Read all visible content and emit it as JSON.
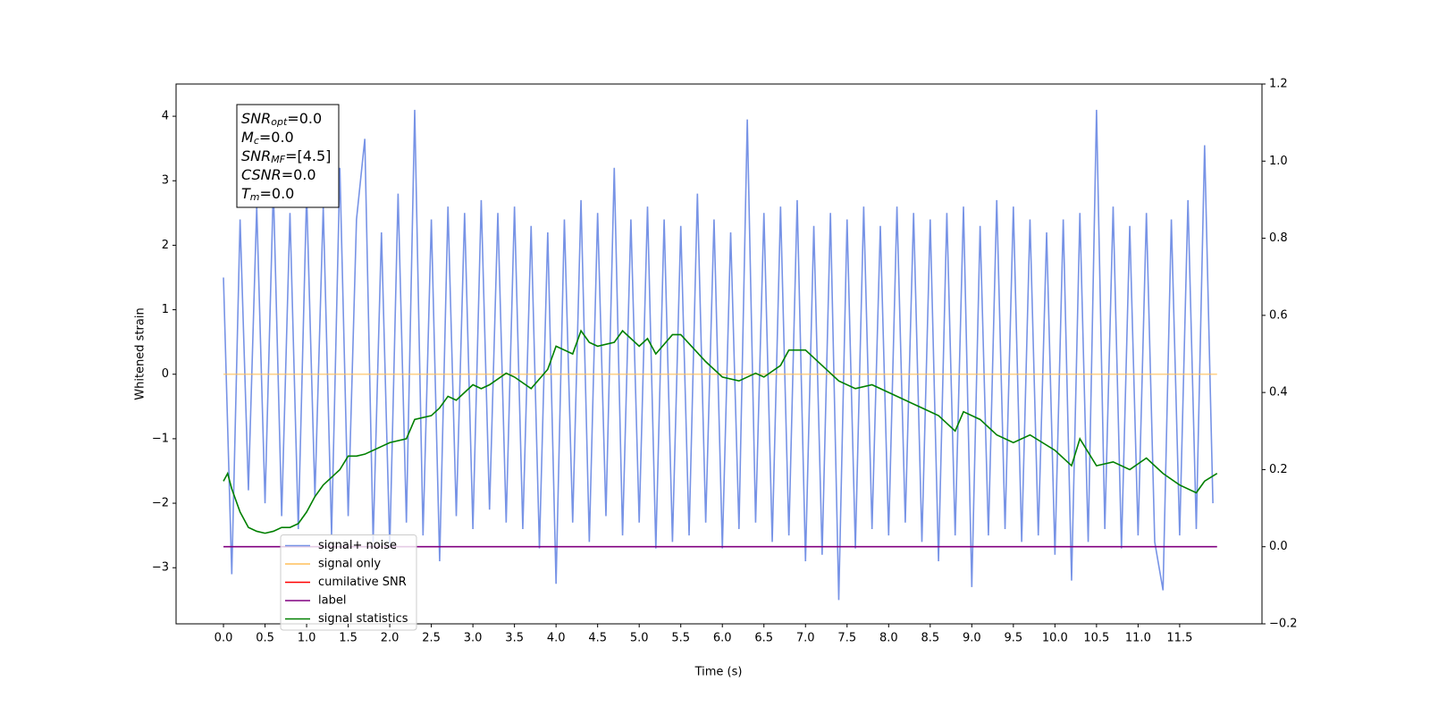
{
  "chart_data": {
    "type": "line",
    "xlabel": "Time (s)",
    "ylabel": "Whitened strain",
    "xlim": [
      -0.57,
      12.49
    ],
    "ylim": [
      -3.87,
      4.5
    ],
    "y2lim": [
      -0.2,
      1.2
    ],
    "xticks": [
      {
        "value": 0,
        "label": "0.0"
      },
      0.5,
      {
        "value": 1,
        "label": "1.0"
      },
      1.5,
      {
        "value": 2,
        "label": "2.0"
      },
      2.5,
      {
        "value": 3,
        "label": "3.0"
      },
      3.5,
      {
        "value": 4,
        "label": "4.0"
      },
      4.5,
      {
        "value": 5,
        "label": "5.0"
      },
      5.5,
      {
        "value": 6,
        "label": "6.0"
      },
      6.5,
      {
        "value": 7,
        "label": "7.0"
      },
      7.5,
      {
        "value": 8,
        "label": "8.0"
      },
      8.5,
      {
        "value": 9,
        "label": "9.0"
      },
      9.5,
      {
        "value": 10,
        "label": "10.0"
      },
      10.5,
      {
        "value": 11,
        "label": "11.0"
      },
      11.5
    ],
    "yticks": [
      {
        "value": -3,
        "label": "−3"
      },
      {
        "value": -2,
        "label": "−2"
      },
      {
        "value": -1,
        "label": "−1"
      },
      0,
      1,
      2,
      3,
      4
    ],
    "y2ticks": [
      {
        "value": -0.2,
        "label": "−0.2"
      },
      {
        "value": 0,
        "label": "0.0"
      },
      0.2,
      0.4,
      0.6,
      0.8,
      {
        "value": 1,
        "label": "1.0"
      },
      1.2
    ],
    "legend_loc": "lower left",
    "annotation": [
      {
        "main": "SNR",
        "sub": "opt",
        "rest": "=0.0"
      },
      {
        "main": "M",
        "sub": "c",
        "rest": "=0.0"
      },
      {
        "main": "SNR",
        "sub": "MF",
        "rest": "=[4.5]"
      },
      {
        "main": "CSNR",
        "sub": null,
        "rest": "=0.0"
      },
      {
        "main": "T",
        "sub": "m",
        "rest": "=0.0"
      }
    ],
    "series": [
      {
        "name": "signal+ noise",
        "color": "#7793e6",
        "axis": "y",
        "x": [
          0,
          0.1,
          0.2,
          0.3,
          0.4,
          0.5,
          0.6,
          0.7,
          0.8,
          0.9,
          1,
          1.1,
          1.2,
          1.3,
          1.4,
          1.5,
          1.6,
          1.7,
          1.8,
          1.9,
          2,
          2.1,
          2.2,
          2.3,
          2.4,
          2.5,
          2.6,
          2.7,
          2.8,
          2.9,
          3,
          3.1,
          3.2,
          3.3,
          3.4,
          3.5,
          3.6,
          3.7,
          3.8,
          3.9,
          4,
          4.1,
          4.2,
          4.3,
          4.4,
          4.5,
          4.6,
          4.7,
          4.8,
          4.9,
          5,
          5.1,
          5.2,
          5.3,
          5.4,
          5.5,
          5.6,
          5.7,
          5.8,
          5.9,
          6,
          6.1,
          6.2,
          6.3,
          6.4,
          6.5,
          6.6,
          6.7,
          6.8,
          6.9,
          7,
          7.1,
          7.2,
          7.3,
          7.4,
          7.5,
          7.6,
          7.7,
          7.8,
          7.9,
          8,
          8.1,
          8.2,
          8.3,
          8.4,
          8.5,
          8.6,
          8.7,
          8.8,
          8.9,
          9,
          9.1,
          9.2,
          9.3,
          9.4,
          9.5,
          9.6,
          9.7,
          9.8,
          9.9,
          10,
          10.1,
          10.2,
          10.3,
          10.4,
          10.5,
          10.6,
          10.7,
          10.8,
          10.9,
          11,
          11.1,
          11.2,
          11.3,
          11.4,
          11.5,
          11.6,
          11.7,
          11.8,
          11.9
        ],
        "values": [
          1.5,
          -3.1,
          2.4,
          -1.8,
          2.6,
          -2.0,
          2.9,
          -2.2,
          2.5,
          -2.4,
          2.8,
          -1.9,
          2.6,
          -2.5,
          3.2,
          -2.2,
          2.4,
          3.65,
          -2.6,
          2.2,
          -2.7,
          2.8,
          -2.3,
          4.1,
          -2.5,
          2.4,
          -2.9,
          2.6,
          -2.2,
          2.5,
          -2.4,
          2.7,
          -2.1,
          2.5,
          -2.3,
          2.6,
          -2.4,
          2.3,
          -2.7,
          2.2,
          -3.25,
          2.4,
          -2.3,
          2.7,
          -2.6,
          2.5,
          -2.2,
          3.2,
          -2.5,
          2.4,
          -2.3,
          2.6,
          -2.7,
          2.4,
          -2.6,
          2.3,
          -2.5,
          2.8,
          -2.3,
          2.4,
          -2.7,
          2.2,
          -2.4,
          3.95,
          -2.3,
          2.5,
          -2.6,
          2.6,
          -2.5,
          2.7,
          -2.9,
          2.3,
          -2.8,
          2.5,
          -3.5,
          2.4,
          -2.7,
          2.6,
          -2.4,
          2.3,
          -2.5,
          2.6,
          -2.3,
          2.5,
          -2.6,
          2.4,
          -2.9,
          2.5,
          -2.5,
          2.6,
          -3.3,
          2.3,
          -2.5,
          2.7,
          -2.4,
          2.6,
          -2.6,
          2.4,
          -2.5,
          2.2,
          -2.8,
          2.4,
          -3.2,
          2.5,
          -2.6,
          4.1,
          -2.4,
          2.6,
          -2.7,
          2.3,
          -2.5,
          2.5,
          -2.6,
          -3.35,
          2.4,
          -2.5,
          2.7,
          -2.4,
          3.55,
          -2.0
        ]
      },
      {
        "name": "signal only",
        "color": "#ffbf5a",
        "axis": "y",
        "x": [
          0,
          11.95
        ],
        "values": [
          0,
          0
        ]
      },
      {
        "name": "cumilative SNR",
        "color": "#ff0000",
        "axis": "y2",
        "x": [],
        "values": []
      },
      {
        "name": "label",
        "color": "#800080",
        "axis": "y2",
        "x": [
          0,
          11.95
        ],
        "values": [
          0,
          0
        ]
      },
      {
        "name": "signal statistics",
        "color": "#008000",
        "axis": "y2",
        "x": [
          0,
          0.05,
          0.1,
          0.2,
          0.3,
          0.4,
          0.5,
          0.6,
          0.7,
          0.8,
          0.9,
          1.0,
          1.1,
          1.2,
          1.3,
          1.4,
          1.5,
          1.6,
          1.7,
          1.8,
          1.9,
          2.0,
          2.2,
          2.3,
          2.5,
          2.6,
          2.7,
          2.8,
          3.0,
          3.1,
          3.2,
          3.4,
          3.5,
          3.7,
          3.9,
          4.0,
          4.2,
          4.3,
          4.4,
          4.5,
          4.7,
          4.8,
          5.0,
          5.1,
          5.2,
          5.4,
          5.5,
          5.8,
          6.0,
          6.2,
          6.4,
          6.5,
          6.7,
          6.8,
          7.0,
          7.2,
          7.4,
          7.6,
          7.8,
          8.0,
          8.2,
          8.4,
          8.6,
          8.8,
          8.9,
          9.1,
          9.3,
          9.5,
          9.7,
          10.0,
          10.2,
          10.3,
          10.5,
          10.7,
          10.9,
          11.1,
          11.3,
          11.5,
          11.7,
          11.8,
          11.95
        ],
        "values": [
          0.17,
          0.19,
          0.15,
          0.09,
          0.05,
          0.04,
          0.035,
          0.04,
          0.05,
          0.05,
          0.06,
          0.09,
          0.13,
          0.16,
          0.18,
          0.2,
          0.235,
          0.235,
          0.24,
          0.25,
          0.26,
          0.27,
          0.28,
          0.33,
          0.34,
          0.36,
          0.39,
          0.38,
          0.42,
          0.41,
          0.42,
          0.45,
          0.44,
          0.41,
          0.46,
          0.52,
          0.5,
          0.56,
          0.53,
          0.52,
          0.53,
          0.56,
          0.52,
          0.54,
          0.5,
          0.55,
          0.55,
          0.48,
          0.44,
          0.43,
          0.45,
          0.44,
          0.47,
          0.51,
          0.51,
          0.47,
          0.43,
          0.41,
          0.42,
          0.4,
          0.38,
          0.36,
          0.34,
          0.3,
          0.35,
          0.33,
          0.29,
          0.27,
          0.29,
          0.25,
          0.21,
          0.28,
          0.21,
          0.22,
          0.2,
          0.23,
          0.19,
          0.16,
          0.14,
          0.17,
          0.19
        ]
      }
    ]
  }
}
